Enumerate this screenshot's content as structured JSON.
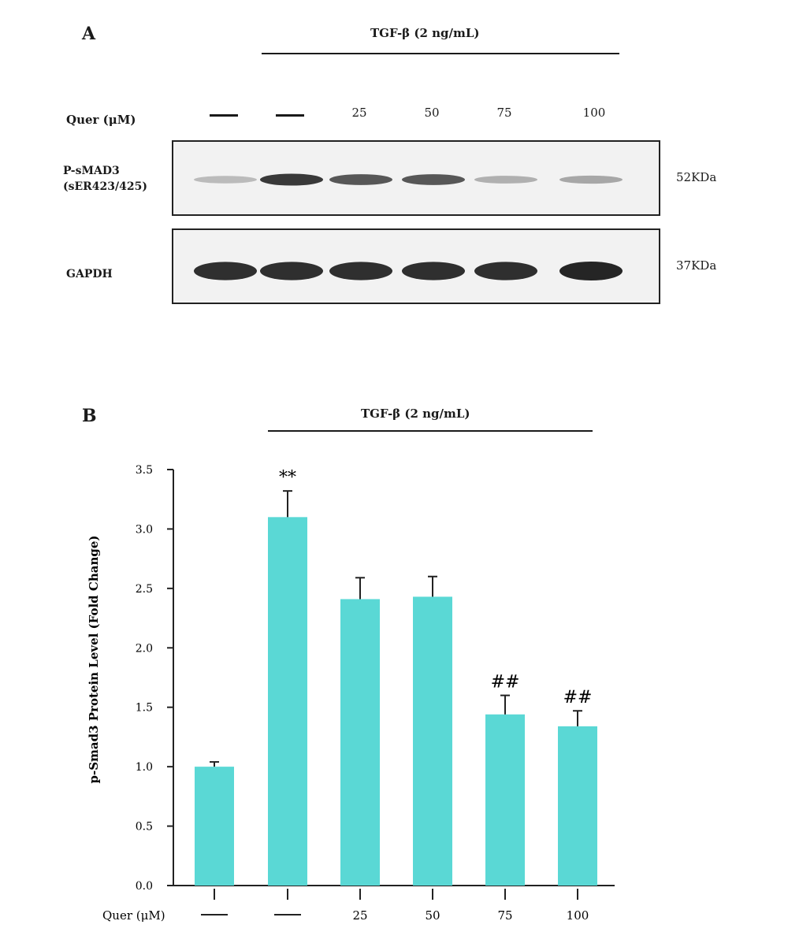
{
  "panel_a": {
    "label": "A",
    "treatment": "TGF-β (2 ng/mL)",
    "conc_label": "Quer (μM)",
    "lanes": [
      "—",
      "—",
      "25",
      "50",
      "75",
      "100"
    ],
    "rows": [
      {
        "label": "P-sMAD3",
        "sublabel": "(sER423/425)",
        "size": "52KDa"
      },
      {
        "label": "GAPDH",
        "sublabel": "",
        "size": "37KDa"
      }
    ],
    "band_intensity": {
      "psmad3": [
        0.25,
        0.9,
        0.75,
        0.75,
        0.3,
        0.35
      ],
      "gapdh": [
        0.95,
        0.95,
        0.95,
        0.95,
        0.95,
        1.0
      ]
    }
  },
  "panel_b": {
    "label": "B",
    "treatment": "TGF-β (2 ng/mL)",
    "conc_label": "Quer (μM)"
  },
  "chart_data": {
    "type": "bar",
    "categories": [
      "—",
      "—",
      "25",
      "50",
      "75",
      "100"
    ],
    "values": [
      1.0,
      3.1,
      2.41,
      2.43,
      1.44,
      1.34
    ],
    "errors": [
      0.04,
      0.22,
      0.18,
      0.17,
      0.16,
      0.13
    ],
    "annotations": [
      "",
      "**",
      "",
      "",
      "##",
      "##"
    ],
    "ylabel": "p-Smad3 Protein Level (Fold Change)",
    "ylim": [
      0,
      3.5
    ],
    "yticks": [
      "0.0",
      "0.5",
      "1.0",
      "1.5",
      "2.0",
      "2.5",
      "3.0",
      "3.5"
    ],
    "bar_color": "#5ad8d5",
    "grid": false
  }
}
